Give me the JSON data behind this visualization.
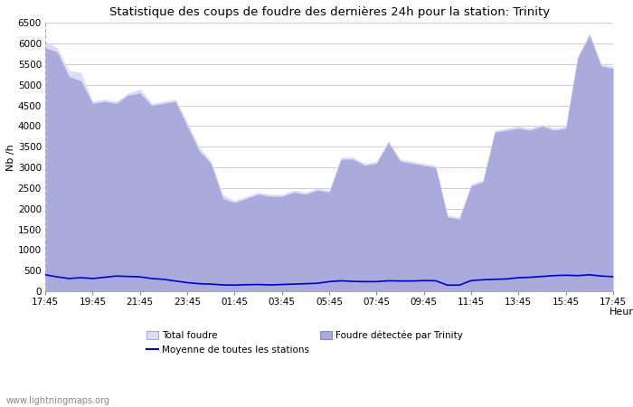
{
  "title": "Statistique des coups de foudre des dernières 24h pour la station: Trinity",
  "xlabel": "Heure",
  "ylabel": "Nb /h",
  "xlabels": [
    "17:45",
    "19:45",
    "21:45",
    "23:45",
    "01:45",
    "03:45",
    "05:45",
    "07:45",
    "09:45",
    "11:45",
    "13:45",
    "15:45",
    "17:45"
  ],
  "ylim": [
    0,
    6500
  ],
  "yticks": [
    0,
    500,
    1000,
    1500,
    2000,
    2500,
    3000,
    3500,
    4000,
    4500,
    5000,
    5500,
    6000,
    6500
  ],
  "bg_color": "#ffffff",
  "plot_bg_color": "#ffffff",
  "grid_color": "#cccccc",
  "total_foudre_color": "#dcdcf5",
  "foudre_trinity_color": "#aaaadd",
  "moyenne_color": "#0000cc",
  "watermark": "www.lightningmaps.org",
  "total_foudre": [
    6050,
    5900,
    5350,
    5300,
    4600,
    4650,
    4600,
    4800,
    4900,
    4550,
    4600,
    4650,
    4100,
    3500,
    3150,
    2350,
    2200,
    2300,
    2400,
    2350,
    2350,
    2450,
    2400,
    2500,
    2450,
    3250,
    3250,
    3100,
    3150,
    3650,
    3200,
    3150,
    3100,
    3050,
    1850,
    1800,
    2600,
    2700,
    3900,
    3950,
    4000,
    3950,
    4050,
    3950,
    4000,
    5700,
    6250,
    5500,
    5450
  ],
  "foudre_trinity": [
    5900,
    5800,
    5200,
    5100,
    4550,
    4600,
    4550,
    4750,
    4800,
    4500,
    4550,
    4600,
    4000,
    3400,
    3100,
    2250,
    2150,
    2250,
    2350,
    2300,
    2300,
    2400,
    2350,
    2450,
    2400,
    3200,
    3200,
    3050,
    3100,
    3600,
    3150,
    3100,
    3050,
    3000,
    1800,
    1750,
    2550,
    2650,
    3850,
    3900,
    3950,
    3900,
    4000,
    3900,
    3950,
    5650,
    6200,
    5450,
    5400
  ],
  "moyenne": [
    400,
    350,
    310,
    330,
    310,
    340,
    370,
    360,
    350,
    310,
    290,
    250,
    210,
    185,
    175,
    155,
    150,
    160,
    165,
    155,
    165,
    175,
    185,
    195,
    235,
    255,
    240,
    235,
    235,
    255,
    250,
    250,
    260,
    255,
    150,
    150,
    260,
    280,
    290,
    300,
    330,
    340,
    360,
    380,
    390,
    380,
    400,
    370,
    355
  ]
}
